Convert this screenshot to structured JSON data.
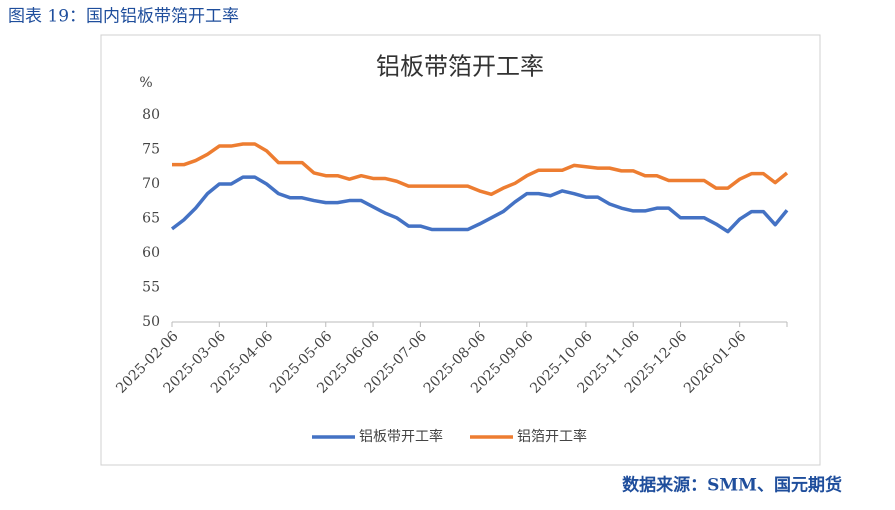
{
  "caption": "图表 19：国内铝板带箔开工率",
  "source": "数据来源：SMM、国元期货",
  "chart_data": {
    "type": "line",
    "title": "铝板带箔开工率",
    "y_label": "%",
    "categories": [
      "2025-02-06",
      null,
      null,
      null,
      "2025-03-06",
      null,
      null,
      null,
      "2025-04-06",
      null,
      null,
      null,
      null,
      "2025-05-06",
      null,
      null,
      null,
      "2025-06-06",
      null,
      null,
      null,
      "2025-07-06",
      null,
      null,
      null,
      null,
      "2025-08-06",
      null,
      null,
      null,
      "2025-09-06",
      null,
      null,
      null,
      null,
      "2025-10-06",
      null,
      null,
      null,
      "2025-11-06",
      null,
      null,
      null,
      "2025-12-06",
      null,
      null,
      null,
      null,
      "2026-01-06",
      null,
      null,
      null,
      null
    ],
    "series": [
      {
        "name": "铝板带开工率",
        "color": "#4472c4",
        "values": [
          63.5,
          64.8,
          66.5,
          68.6,
          70.0,
          70.0,
          71.0,
          71.0,
          70.0,
          68.6,
          68.0,
          68.0,
          67.6,
          67.3,
          67.3,
          67.6,
          67.6,
          66.7,
          65.8,
          65.1,
          63.9,
          63.9,
          63.4,
          63.4,
          63.4,
          63.4,
          64.2,
          65.1,
          66.0,
          67.4,
          68.6,
          68.6,
          68.3,
          69.0,
          68.6,
          68.1,
          68.1,
          67.1,
          66.5,
          66.1,
          66.1,
          66.5,
          66.5,
          65.1,
          65.1,
          65.1,
          64.2,
          63.1,
          64.9,
          66.0,
          66.0,
          64.1,
          66.2
        ]
      },
      {
        "name": "铝箔开工率",
        "color": "#ed7d31",
        "values": [
          72.8,
          72.8,
          73.4,
          74.3,
          75.5,
          75.5,
          75.8,
          75.8,
          74.8,
          73.1,
          73.1,
          73.1,
          71.6,
          71.2,
          71.2,
          70.7,
          71.2,
          70.8,
          70.8,
          70.4,
          69.7,
          69.7,
          69.7,
          69.7,
          69.7,
          69.7,
          69.0,
          68.5,
          69.4,
          70.1,
          71.2,
          72.0,
          72.0,
          72.0,
          72.7,
          72.5,
          72.3,
          72.3,
          71.9,
          71.9,
          71.2,
          71.2,
          70.5,
          70.5,
          70.5,
          70.5,
          69.4,
          69.4,
          70.7,
          71.5,
          71.5,
          70.2,
          71.6
        ]
      }
    ],
    "ylim": [
      50,
      80
    ],
    "yticks": [
      50,
      55,
      60,
      65,
      70,
      75,
      80
    ],
    "grid": false,
    "legend": "bottom"
  }
}
